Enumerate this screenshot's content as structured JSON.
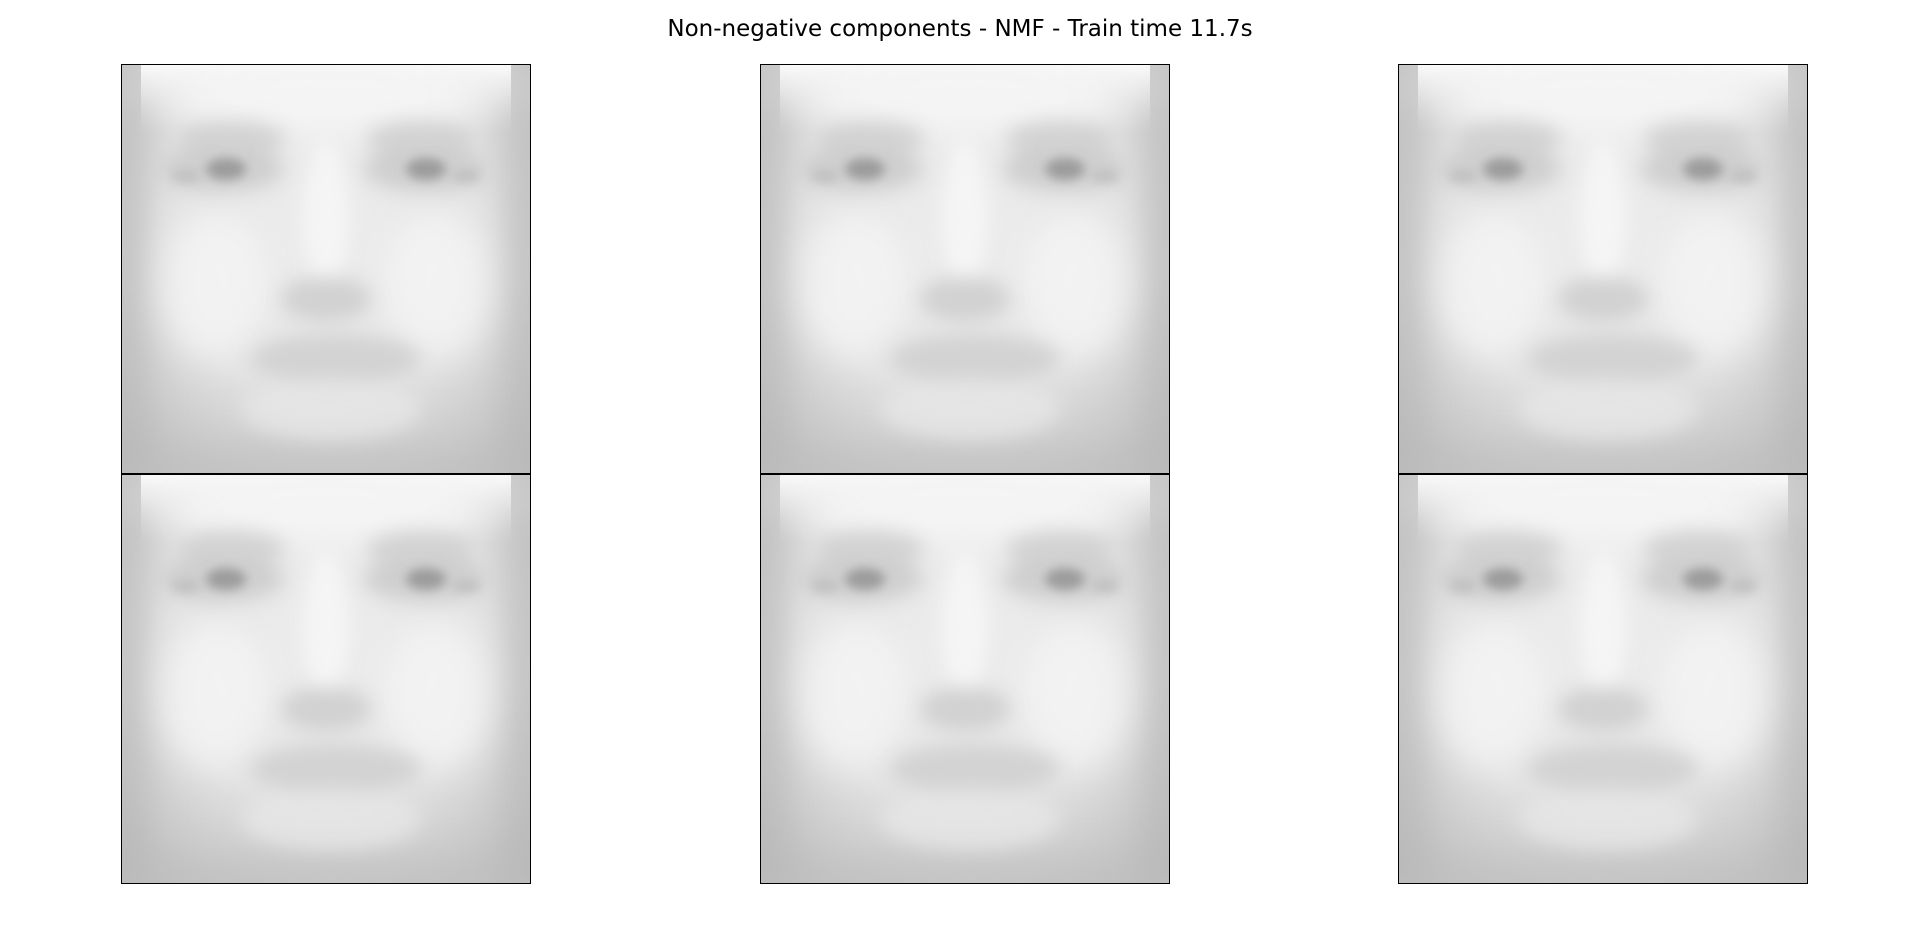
{
  "figure": {
    "title": "Non-negative components - NMF - Train time 11.7s"
  },
  "chart_data": {
    "type": "heatmap",
    "title": "Non-negative components - NMF - Train time 11.7s",
    "xlabel": "",
    "ylabel": "",
    "grid": false,
    "colormap": "gray",
    "layout": {
      "rows": 2,
      "cols": 3
    },
    "panels": [
      {
        "row": 0,
        "col": 0,
        "content": "face component image"
      },
      {
        "row": 0,
        "col": 1,
        "content": "face component image"
      },
      {
        "row": 0,
        "col": 2,
        "content": "face component image"
      },
      {
        "row": 1,
        "col": 0,
        "content": "face component image"
      },
      {
        "row": 1,
        "col": 1,
        "content": "face component image"
      },
      {
        "row": 1,
        "col": 2,
        "content": "face component image"
      }
    ]
  },
  "colors": {
    "background": "#ffffff",
    "frame": "#000000",
    "skin_light": "#f4f4f4",
    "skin_mid": "#dedede",
    "shadow": "#b8b8b8",
    "eye": "#9a9a9a"
  }
}
